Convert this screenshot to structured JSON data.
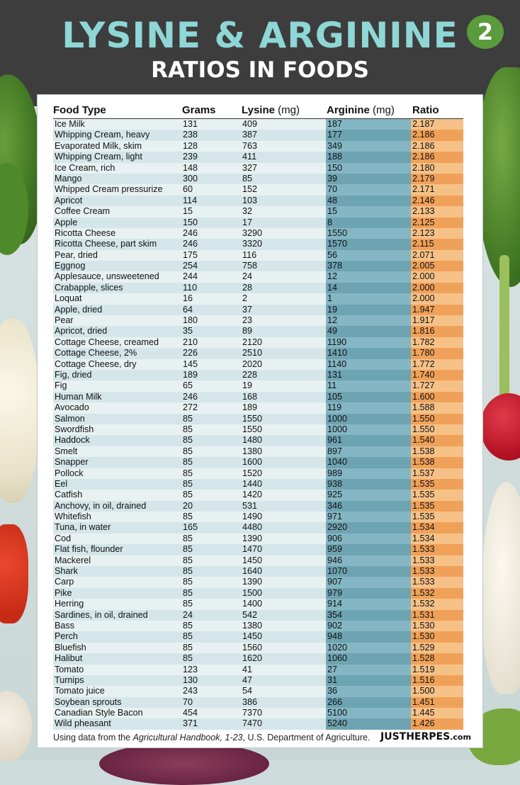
{
  "header": {
    "title": "LYSINE & ARGININE",
    "subtitle": "RATIOS IN FOODS",
    "badge": "2"
  },
  "table": {
    "columns": {
      "food": "Food Type",
      "grams": "Grams",
      "lysine": "Lysine",
      "lysine_unit": "(mg)",
      "arginine": "Arginine",
      "arginine_unit": "(mg)",
      "ratio": "Ratio"
    },
    "rows": [
      {
        "food": "Ice Milk",
        "grams": "131",
        "lysine": "409",
        "arginine": "187",
        "ratio": "2.187"
      },
      {
        "food": "Whipping Cream, heavy",
        "grams": "238",
        "lysine": "387",
        "arginine": "177",
        "ratio": "2.186"
      },
      {
        "food": "Evaporated Milk, skim",
        "grams": "128",
        "lysine": "763",
        "arginine": "349",
        "ratio": "2.186"
      },
      {
        "food": "Whipping Cream, light",
        "grams": "239",
        "lysine": "411",
        "arginine": "188",
        "ratio": "2.186"
      },
      {
        "food": "Ice Cream, rich",
        "grams": "148",
        "lysine": "327",
        "arginine": "150",
        "ratio": "2.180"
      },
      {
        "food": "Mango",
        "grams": "300",
        "lysine": "85",
        "arginine": "39",
        "ratio": "2.179"
      },
      {
        "food": "Whipped Cream pressurize",
        "grams": "60",
        "lysine": "152",
        "arginine": "70",
        "ratio": "2.171"
      },
      {
        "food": "Apricot",
        "grams": "114",
        "lysine": "103",
        "arginine": "48",
        "ratio": "2.146"
      },
      {
        "food": "Coffee Cream",
        "grams": "15",
        "lysine": "32",
        "arginine": "15",
        "ratio": "2.133"
      },
      {
        "food": "Apple",
        "grams": "150",
        "lysine": "17",
        "arginine": "8",
        "ratio": "2.125"
      },
      {
        "food": "Ricotta Cheese",
        "grams": "246",
        "lysine": "3290",
        "arginine": "1550",
        "ratio": "2.123"
      },
      {
        "food": "Ricotta Cheese, part skim",
        "grams": "246",
        "lysine": "3320",
        "arginine": "1570",
        "ratio": "2.115"
      },
      {
        "food": "Pear, dried",
        "grams": "175",
        "lysine": "116",
        "arginine": "56",
        "ratio": "2.071"
      },
      {
        "food": "Eggnog",
        "grams": "254",
        "lysine": "758",
        "arginine": "378",
        "ratio": "2.005"
      },
      {
        "food": "Applesauce, unsweetened",
        "grams": "244",
        "lysine": "24",
        "arginine": "12",
        "ratio": "2.000"
      },
      {
        "food": "Crabapple, slices",
        "grams": "110",
        "lysine": "28",
        "arginine": "14",
        "ratio": "2.000"
      },
      {
        "food": "Loquat",
        "grams": "16",
        "lysine": "2",
        "arginine": "1",
        "ratio": "2.000"
      },
      {
        "food": "Apple, dried",
        "grams": "64",
        "lysine": "37",
        "arginine": "19",
        "ratio": "1.947"
      },
      {
        "food": "Pear",
        "grams": "180",
        "lysine": "23",
        "arginine": "12",
        "ratio": "1.917"
      },
      {
        "food": "Apricot, dried",
        "grams": "35",
        "lysine": "89",
        "arginine": "49",
        "ratio": "1.816"
      },
      {
        "food": "Cottage Cheese, creamed",
        "grams": "210",
        "lysine": "2120",
        "arginine": "1190",
        "ratio": "1.782"
      },
      {
        "food": "Cottage Cheese, 2%",
        "grams": "226",
        "lysine": "2510",
        "arginine": "1410",
        "ratio": "1.780"
      },
      {
        "food": "Cottage Cheese, dry",
        "grams": "145",
        "lysine": "2020",
        "arginine": "1140",
        "ratio": "1.772"
      },
      {
        "food": "Fig, dried",
        "grams": "189",
        "lysine": "228",
        "arginine": "131",
        "ratio": "1.740"
      },
      {
        "food": "Fig",
        "grams": "65",
        "lysine": "19",
        "arginine": "11",
        "ratio": "1.727"
      },
      {
        "food": "Human Milk",
        "grams": "246",
        "lysine": "168",
        "arginine": "105",
        "ratio": "1.600"
      },
      {
        "food": "Avocado",
        "grams": "272",
        "lysine": "189",
        "arginine": "119",
        "ratio": "1.588"
      },
      {
        "food": "Salmon",
        "grams": "85",
        "lysine": "1550",
        "arginine": "1000",
        "ratio": "1.550"
      },
      {
        "food": "Swordfish",
        "grams": "85",
        "lysine": "1550",
        "arginine": "1000",
        "ratio": "1.550"
      },
      {
        "food": "Haddock",
        "grams": "85",
        "lysine": "1480",
        "arginine": "961",
        "ratio": "1.540"
      },
      {
        "food": "Smelt",
        "grams": "85",
        "lysine": "1380",
        "arginine": "897",
        "ratio": "1.538"
      },
      {
        "food": "Snapper",
        "grams": "85",
        "lysine": "1600",
        "arginine": "1040",
        "ratio": "1.538"
      },
      {
        "food": "Pollock",
        "grams": "85",
        "lysine": "1520",
        "arginine": "989",
        "ratio": "1.537"
      },
      {
        "food": "Eel",
        "grams": "85",
        "lysine": "1440",
        "arginine": "938",
        "ratio": "1.535"
      },
      {
        "food": "Catfish",
        "grams": "85",
        "lysine": "1420",
        "arginine": "925",
        "ratio": "1.535"
      },
      {
        "food": "Anchovy, in oil, drained",
        "grams": "20",
        "lysine": "531",
        "arginine": "346",
        "ratio": "1.535"
      },
      {
        "food": "Whitefish",
        "grams": "85",
        "lysine": "1490",
        "arginine": "971",
        "ratio": "1.535"
      },
      {
        "food": "Tuna, in water",
        "grams": "165",
        "lysine": "4480",
        "arginine": "2920",
        "ratio": "1.534"
      },
      {
        "food": "Cod",
        "grams": "85",
        "lysine": "1390",
        "arginine": "906",
        "ratio": "1.534"
      },
      {
        "food": "Flat fish, flounder",
        "grams": "85",
        "lysine": "1470",
        "arginine": "959",
        "ratio": "1.533"
      },
      {
        "food": "Mackerel",
        "grams": "85",
        "lysine": "1450",
        "arginine": "946",
        "ratio": "1.533"
      },
      {
        "food": "Shark",
        "grams": "85",
        "lysine": "1640",
        "arginine": "1070",
        "ratio": "1.533"
      },
      {
        "food": "Carp",
        "grams": "85",
        "lysine": "1390",
        "arginine": "907",
        "ratio": "1.533"
      },
      {
        "food": "Pike",
        "grams": "85",
        "lysine": "1500",
        "arginine": "979",
        "ratio": "1.532"
      },
      {
        "food": "Herring",
        "grams": "85",
        "lysine": "1400",
        "arginine": "914",
        "ratio": "1.532"
      },
      {
        "food": "Sardines, in oil, drained",
        "grams": "24",
        "lysine": "542",
        "arginine": "354",
        "ratio": "1.531"
      },
      {
        "food": "Bass",
        "grams": "85",
        "lysine": "1380",
        "arginine": "902",
        "ratio": "1.530"
      },
      {
        "food": "Perch",
        "grams": "85",
        "lysine": "1450",
        "arginine": "948",
        "ratio": "1.530"
      },
      {
        "food": "Bluefish",
        "grams": "85",
        "lysine": "1560",
        "arginine": "1020",
        "ratio": "1.529"
      },
      {
        "food": "Halibut",
        "grams": "85",
        "lysine": "1620",
        "arginine": "1060",
        "ratio": "1.528"
      },
      {
        "food": "Tomato",
        "grams": "123",
        "lysine": "41",
        "arginine": "27",
        "ratio": "1.519"
      },
      {
        "food": "Turnips",
        "grams": "130",
        "lysine": "47",
        "arginine": "31",
        "ratio": "1.516"
      },
      {
        "food": "Tomato juice",
        "grams": "243",
        "lysine": "54",
        "arginine": "36",
        "ratio": "1.500"
      },
      {
        "food": "Soybean sprouts",
        "grams": "70",
        "lysine": "386",
        "arginine": "266",
        "ratio": "1.451"
      },
      {
        "food": "Canadian Style Bacon",
        "grams": "454",
        "lysine": "7370",
        "arginine": "5100",
        "ratio": "1.445"
      },
      {
        "food": "Wild pheasant",
        "grams": "371",
        "lysine": "7470",
        "arginine": "5240",
        "ratio": "1.426"
      }
    ]
  },
  "footer": {
    "prefix": "Using data from the ",
    "source": "Agricultural Handbook, 1-23",
    "suffix": ", U.S. Department of Agriculture.",
    "logo_main": "JUSTHERPES",
    "logo_domain": ".com"
  },
  "colors": {
    "title": "#8ed7d6",
    "header_band": "#3d3d3d",
    "badge": "#5a9b3b",
    "arginine_column": "#7fb1bf",
    "ratio_column": "#f0a75a"
  },
  "icons": [
    "spinach-image",
    "cauliflower-image",
    "pepper-image",
    "garlic-image",
    "onion-image",
    "radish-image"
  ]
}
